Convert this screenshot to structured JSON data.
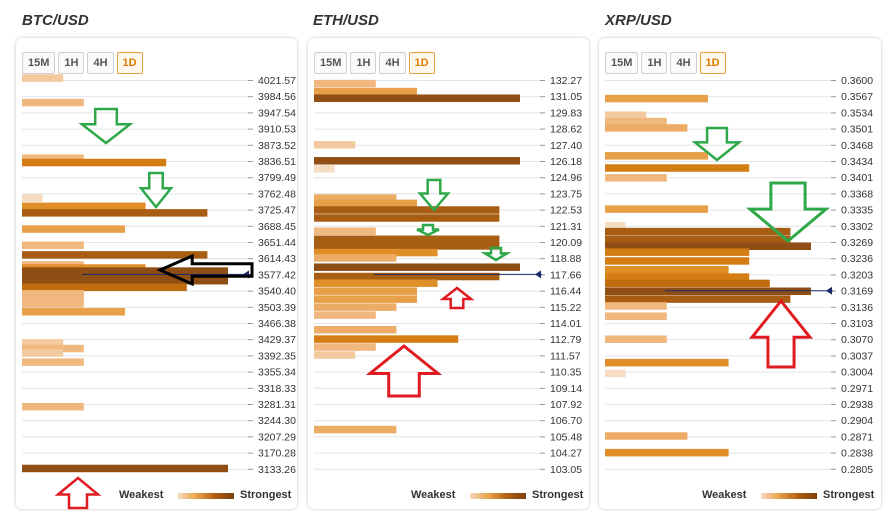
{
  "timeframes": [
    "15M",
    "1H",
    "4H",
    "1D"
  ],
  "active_timeframe": "1D",
  "legend": {
    "weakest": "Weakest",
    "strongest": "Strongest"
  },
  "panels": [
    {
      "title": "BTC/USD"
    },
    {
      "title": "ETH/USD"
    },
    {
      "title": "XRP/USD"
    }
  ],
  "chart_data": [
    {
      "type": "bar",
      "title": "BTC/USD",
      "price_levels": [
        "4021.57",
        "3984.56",
        "3947.54",
        "3910.53",
        "3873.52",
        "3836.51",
        "3799.49",
        "3762.48",
        "3725.47",
        "3688.45",
        "3651.44",
        "3614.43",
        "3577.42",
        "3540.40",
        "3503.39",
        "3466.38",
        "3429.37",
        "3392.35",
        "3355.34",
        "3318.33",
        "3281.31",
        "3244.30",
        "3207.29",
        "3170.28",
        "3133.26"
      ],
      "current_price": 3577.42,
      "bars": [
        {
          "price": 4026,
          "strength": 2
        },
        {
          "price": 3970,
          "strength": 3
        },
        {
          "price": 3843,
          "strength": 3
        },
        {
          "price": 3833,
          "strength": 7
        },
        {
          "price": 3752,
          "strength": 1
        },
        {
          "price": 3733,
          "strength": 6
        },
        {
          "price": 3718,
          "strength": 9
        },
        {
          "price": 3681,
          "strength": 5
        },
        {
          "price": 3644,
          "strength": 3
        },
        {
          "price": 3622,
          "strength": 9
        },
        {
          "price": 3599,
          "strength": 3
        },
        {
          "price": 3592,
          "strength": 6
        },
        {
          "price": 3585,
          "strength": 10
        },
        {
          "price": 3575,
          "strength": 10
        },
        {
          "price": 3563,
          "strength": 10
        },
        {
          "price": 3548,
          "strength": 8
        },
        {
          "price": 3533,
          "strength": 3
        },
        {
          "price": 3522,
          "strength": 3
        },
        {
          "price": 3510,
          "strength": 3
        },
        {
          "price": 3492,
          "strength": 5
        },
        {
          "price": 3421,
          "strength": 2
        },
        {
          "price": 3408,
          "strength": 3
        },
        {
          "price": 3398,
          "strength": 2
        },
        {
          "price": 3377,
          "strength": 3
        },
        {
          "price": 3275,
          "strength": 3
        },
        {
          "price": 3134,
          "strength": 10
        }
      ]
    },
    {
      "type": "bar",
      "title": "ETH/USD",
      "price_levels": [
        "132.27",
        "131.05",
        "129.83",
        "128.62",
        "127.40",
        "126.18",
        "124.96",
        "123.75",
        "122.53",
        "121.31",
        "120.09",
        "118.88",
        "117.66",
        "116.44",
        "115.22",
        "114.01",
        "112.79",
        "111.57",
        "110.35",
        "109.14",
        "107.92",
        "106.70",
        "105.48",
        "104.27",
        "103.05"
      ],
      "current_price": 117.66,
      "bars": [
        {
          "price": 132.0,
          "strength": 3
        },
        {
          "price": 131.4,
          "strength": 5
        },
        {
          "price": 130.9,
          "strength": 10
        },
        {
          "price": 127.4,
          "strength": 2
        },
        {
          "price": 126.2,
          "strength": 10
        },
        {
          "price": 125.6,
          "strength": 1
        },
        {
          "price": 123.4,
          "strength": 4
        },
        {
          "price": 123.0,
          "strength": 5
        },
        {
          "price": 122.5,
          "strength": 9
        },
        {
          "price": 121.9,
          "strength": 9
        },
        {
          "price": 120.9,
          "strength": 3
        },
        {
          "price": 120.3,
          "strength": 9
        },
        {
          "price": 119.8,
          "strength": 9
        },
        {
          "price": 119.3,
          "strength": 6
        },
        {
          "price": 118.9,
          "strength": 4
        },
        {
          "price": 118.2,
          "strength": 10
        },
        {
          "price": 117.5,
          "strength": 9
        },
        {
          "price": 117.0,
          "strength": 6
        },
        {
          "price": 116.4,
          "strength": 5
        },
        {
          "price": 115.8,
          "strength": 5
        },
        {
          "price": 115.2,
          "strength": 4
        },
        {
          "price": 114.6,
          "strength": 3
        },
        {
          "price": 113.5,
          "strength": 4
        },
        {
          "price": 112.8,
          "strength": 7
        },
        {
          "price": 112.2,
          "strength": 3
        },
        {
          "price": 111.6,
          "strength": 2
        },
        {
          "price": 106.0,
          "strength": 4
        }
      ]
    },
    {
      "type": "bar",
      "title": "XRP/USD",
      "price_levels": [
        "0.3600",
        "0.3567",
        "0.3534",
        "0.3501",
        "0.3468",
        "0.3434",
        "0.3401",
        "0.3368",
        "0.3335",
        "0.3302",
        "0.3269",
        "0.3236",
        "0.3203",
        "0.3169",
        "0.3136",
        "0.3103",
        "0.3070",
        "0.3037",
        "0.3004",
        "0.2971",
        "0.2938",
        "0.2904",
        "0.2871",
        "0.2838",
        "0.2805"
      ],
      "current_price": 0.3169,
      "bars": [
        {
          "price": 0.3562,
          "strength": 5
        },
        {
          "price": 0.3528,
          "strength": 2
        },
        {
          "price": 0.3515,
          "strength": 3
        },
        {
          "price": 0.3502,
          "strength": 4
        },
        {
          "price": 0.3445,
          "strength": 5
        },
        {
          "price": 0.342,
          "strength": 7
        },
        {
          "price": 0.34,
          "strength": 3
        },
        {
          "price": 0.3336,
          "strength": 5
        },
        {
          "price": 0.3302,
          "strength": 1
        },
        {
          "price": 0.329,
          "strength": 9
        },
        {
          "price": 0.3274,
          "strength": 9
        },
        {
          "price": 0.326,
          "strength": 10
        },
        {
          "price": 0.3248,
          "strength": 7
        },
        {
          "price": 0.323,
          "strength": 7
        },
        {
          "price": 0.3212,
          "strength": 6
        },
        {
          "price": 0.3197,
          "strength": 7
        },
        {
          "price": 0.3184,
          "strength": 8
        },
        {
          "price": 0.3168,
          "strength": 10
        },
        {
          "price": 0.3152,
          "strength": 9
        },
        {
          "price": 0.3138,
          "strength": 3
        },
        {
          "price": 0.3117,
          "strength": 3
        },
        {
          "price": 0.307,
          "strength": 3
        },
        {
          "price": 0.3022,
          "strength": 6
        },
        {
          "price": 0.3,
          "strength": 1
        },
        {
          "price": 0.2872,
          "strength": 4
        },
        {
          "price": 0.2838,
          "strength": 6
        }
      ]
    }
  ],
  "colors": {
    "scale": [
      "#f6dcc2",
      "#f3c9a0",
      "#f0b77e",
      "#ecac66",
      "#e8a048",
      "#e08e28",
      "#d47d14",
      "#c06d10",
      "#a85e12",
      "#8f4f14"
    ],
    "grid": "#e4e4e4",
    "price_line": "#1a2a6a",
    "arrow_green": "#2fa84a",
    "arrow_red": "#e01b22",
    "arrow_black": "#000000"
  },
  "annotations": [
    {
      "panel": 0,
      "icon": "arrow-down-icon",
      "color": "green"
    },
    {
      "panel": 0,
      "icon": "arrow-down-icon",
      "color": "green"
    },
    {
      "panel": 0,
      "icon": "arrow-left-icon",
      "color": "black"
    },
    {
      "panel": 0,
      "icon": "arrow-up-icon",
      "color": "red"
    },
    {
      "panel": 1,
      "icon": "arrow-down-icon",
      "color": "green"
    },
    {
      "panel": 1,
      "icon": "arrow-down-icon",
      "color": "green"
    },
    {
      "panel": 1,
      "icon": "arrow-down-icon",
      "color": "green"
    },
    {
      "panel": 1,
      "icon": "arrow-up-icon",
      "color": "red"
    },
    {
      "panel": 1,
      "icon": "arrow-up-icon",
      "color": "red"
    },
    {
      "panel": 2,
      "icon": "arrow-down-icon",
      "color": "green"
    },
    {
      "panel": 2,
      "icon": "arrow-down-icon",
      "color": "green"
    },
    {
      "panel": 2,
      "icon": "arrow-up-icon",
      "color": "red"
    }
  ]
}
